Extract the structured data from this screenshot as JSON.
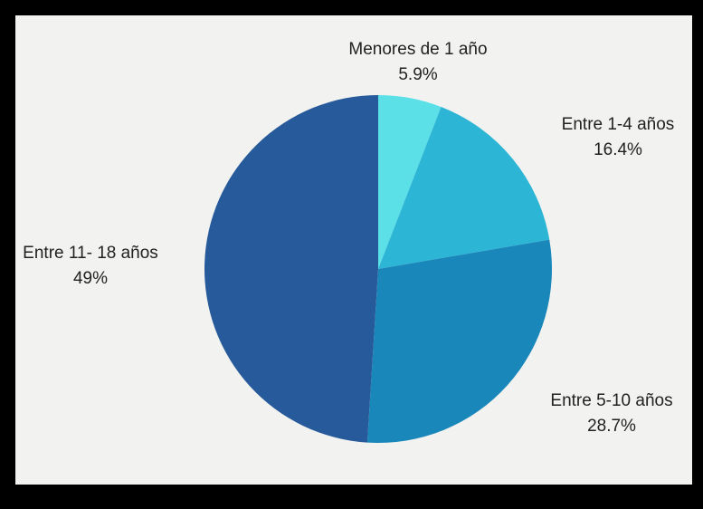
{
  "chart_data": {
    "type": "pie",
    "title": "",
    "slices": [
      {
        "label": "Menores de 1 año",
        "value": 5.9,
        "display": "5.9%",
        "color": "#5ae0e6"
      },
      {
        "label": "Entre 1-4 años",
        "value": 16.4,
        "display": "16.4%",
        "color": "#2db5d6"
      },
      {
        "label": "Entre 5-10 años",
        "value": 28.7,
        "display": "28.7%",
        "color": "#1a87bb"
      },
      {
        "label": "Entre 11- 18 años",
        "value": 49,
        "display": "49%",
        "color": "#275a9a"
      }
    ],
    "start_angle": "12 o'clock",
    "direction": "clockwise",
    "legend": "none (labels placed beside slices)"
  },
  "colors": {
    "background": "#000000",
    "panel": "#f2f3f0",
    "text": "#222222"
  }
}
